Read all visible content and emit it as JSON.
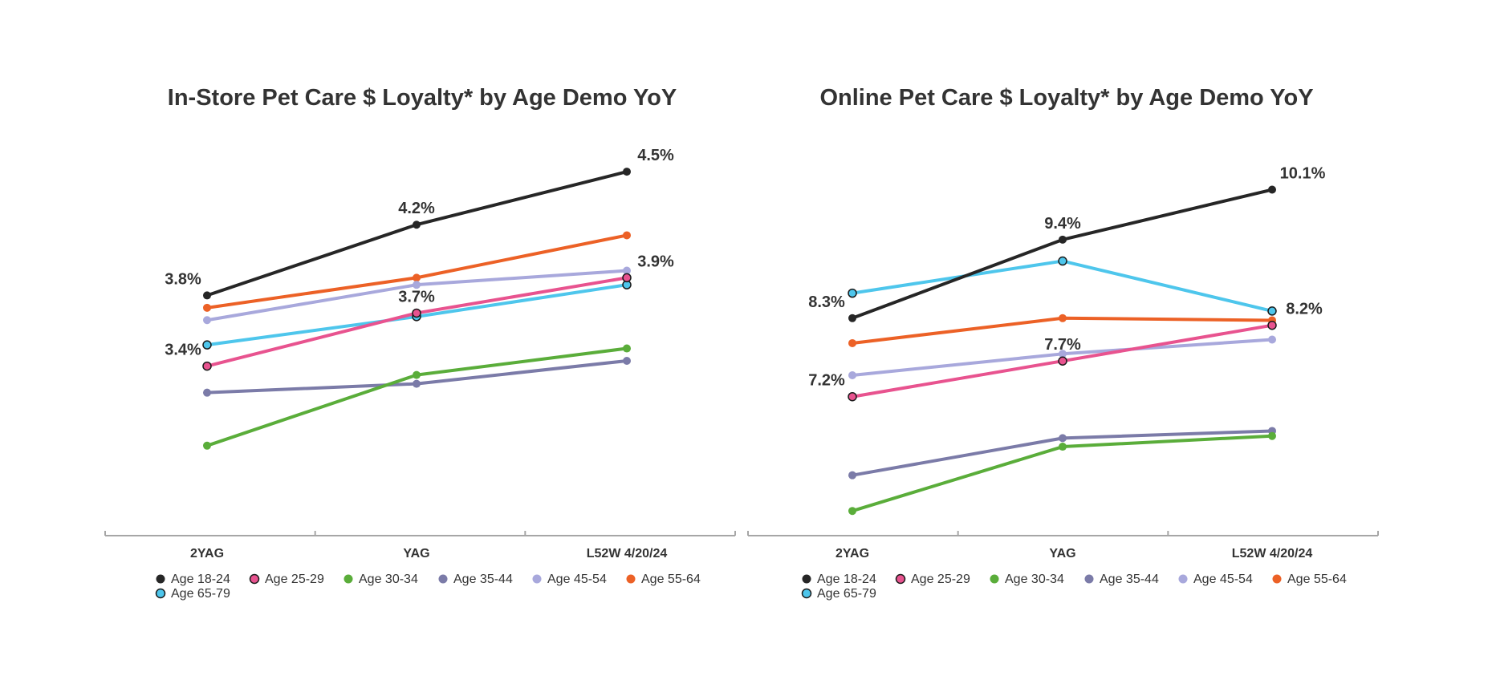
{
  "chart_data": [
    {
      "type": "line",
      "title": "In-Store  Pet Care $ Loyalty* by Age Demo YoY",
      "categories": [
        "2YAG",
        "YAG",
        "L52W 4/20/24"
      ],
      "ylim": [
        2.5,
        4.7
      ],
      "grid": false,
      "legend_position": "bottom-left",
      "series": [
        {
          "name": "Age 18-24",
          "color": "#262626",
          "values": [
            3.8,
            4.2,
            4.5
          ],
          "labels": [
            "3.8%",
            "4.2%",
            "4.5%"
          ]
        },
        {
          "name": "Age 25-29",
          "color": "#e8538f",
          "values": [
            3.4,
            3.7,
            3.9
          ],
          "labels": [
            "3.4%",
            "3.7%",
            "3.9%"
          ]
        },
        {
          "name": "Age 30-34",
          "color": "#5aad3a",
          "values": [
            2.95,
            3.35,
            3.5
          ]
        },
        {
          "name": "Age 35-44",
          "color": "#7b7ba8",
          "values": [
            3.25,
            3.3,
            3.43
          ]
        },
        {
          "name": "Age 45-54",
          "color": "#a8a8dc",
          "values": [
            3.66,
            3.86,
            3.94
          ]
        },
        {
          "name": "Age 55-64",
          "color": "#ec6126",
          "values": [
            3.73,
            3.9,
            4.14
          ]
        },
        {
          "name": "Age 65-79",
          "color": "#4ec6ec",
          "values": [
            3.52,
            3.68,
            3.86
          ]
        }
      ]
    },
    {
      "type": "line",
      "title": "Online  Pet Care $ Loyalty* by Age Demo YoY",
      "categories": [
        "2YAG",
        "YAG",
        "L52W 4/20/24"
      ],
      "ylim": [
        5.4,
        10.6
      ],
      "grid": false,
      "legend_position": "bottom-left",
      "series": [
        {
          "name": "Age 18-24",
          "color": "#262626",
          "values": [
            8.3,
            9.4,
            10.1
          ],
          "labels": [
            "8.3%",
            "9.4%",
            "10.1%"
          ]
        },
        {
          "name": "Age 25-29",
          "color": "#e8538f",
          "values": [
            7.2,
            7.7,
            8.2
          ],
          "labels": [
            "7.2%",
            "7.7%",
            "8.2%"
          ]
        },
        {
          "name": "Age 30-34",
          "color": "#5aad3a",
          "values": [
            5.6,
            6.5,
            6.65
          ]
        },
        {
          "name": "Age 35-44",
          "color": "#7b7ba8",
          "values": [
            6.1,
            6.62,
            6.72
          ]
        },
        {
          "name": "Age 45-54",
          "color": "#a8a8dc",
          "values": [
            7.5,
            7.8,
            8.0
          ]
        },
        {
          "name": "Age 55-64",
          "color": "#ec6126",
          "values": [
            7.95,
            8.3,
            8.27
          ]
        },
        {
          "name": "Age 65-79",
          "color": "#4ec6ec",
          "values": [
            8.65,
            9.1,
            8.4
          ]
        }
      ]
    }
  ]
}
